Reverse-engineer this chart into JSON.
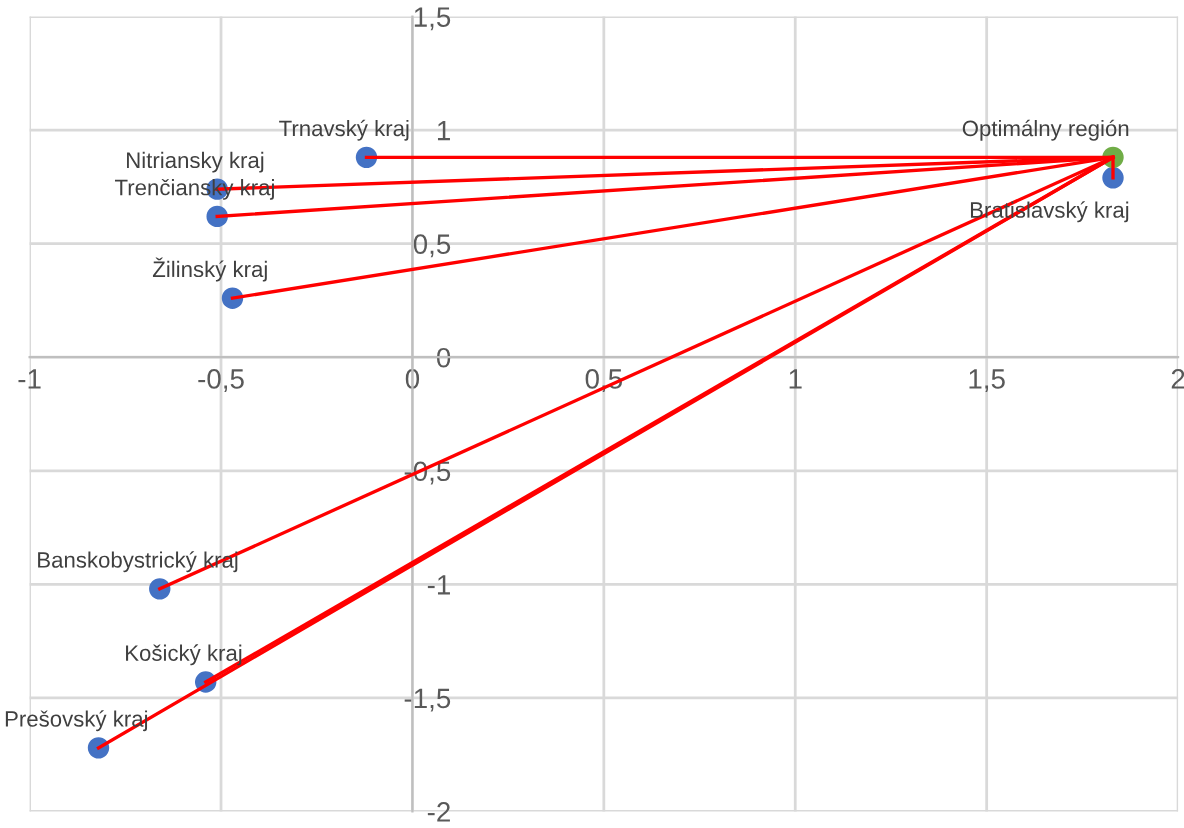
{
  "chart_data": {
    "type": "scatter",
    "grid": true,
    "marker": "circle",
    "legend": false,
    "xlim": [
      -1,
      2
    ],
    "ylim": [
      -2,
      1.5
    ],
    "xticks": [
      -1,
      {
        "value": -0.5,
        "label": "-0,5"
      },
      0,
      {
        "value": 0.5,
        "label": "0,5"
      },
      1,
      {
        "value": 1.5,
        "label": "1,5"
      },
      2
    ],
    "yticks": [
      -2,
      {
        "value": -1.5,
        "label": "-1,5"
      },
      -1,
      {
        "value": -0.5,
        "label": "-0,5"
      },
      0,
      {
        "value": 0.5,
        "label": "0,5"
      },
      1,
      {
        "value": 1.5,
        "label": "1,5"
      }
    ],
    "series": [
      {
        "type": "line",
        "marker": "none",
        "color": "#ff0000",
        "x": [
          -0.12,
          1.83
        ],
        "values": [
          0.88,
          0.88
        ]
      },
      {
        "type": "line",
        "marker": "none",
        "color": "#ff0000",
        "x": [
          -0.51,
          1.83
        ],
        "values": [
          0.74,
          0.88
        ]
      },
      {
        "type": "line",
        "marker": "none",
        "color": "#ff0000",
        "x": [
          -0.51,
          1.83
        ],
        "values": [
          0.62,
          0.88
        ]
      },
      {
        "type": "line",
        "marker": "none",
        "color": "#ff0000",
        "x": [
          -0.47,
          1.83
        ],
        "values": [
          0.26,
          0.88
        ]
      },
      {
        "type": "line",
        "marker": "none",
        "color": "#ff0000",
        "x": [
          -0.66,
          1.83
        ],
        "values": [
          -1.02,
          0.88
        ]
      },
      {
        "type": "line",
        "marker": "none",
        "color": "#ff0000",
        "x": [
          -0.54,
          1.83
        ],
        "values": [
          -1.43,
          0.88
        ]
      },
      {
        "type": "line",
        "marker": "none",
        "color": "#ff0000",
        "x": [
          -0.82,
          1.83
        ],
        "values": [
          -1.72,
          0.88
        ]
      },
      {
        "type": "line",
        "marker": "none",
        "color": "#ff0000",
        "x": [
          1.83,
          1.83
        ],
        "values": [
          0.79,
          0.88
        ]
      },
      {
        "color": "#4472c4",
        "x": [
          -0.12,
          -0.51,
          -0.51,
          -0.47,
          -0.66,
          -0.54,
          -0.82,
          1.83
        ],
        "values": [
          0.88,
          0.74,
          0.62,
          0.26,
          -1.02,
          -1.43,
          -1.72,
          0.79
        ]
      },
      {
        "color": "#70ad47",
        "x": [
          1.83
        ],
        "values": [
          0.88
        ]
      }
    ],
    "annotations": [
      {
        "text": "Trnavský kraj",
        "x": -0.12,
        "y": 0.88
      },
      {
        "text": "Nitriansky kraj",
        "x": -0.51,
        "y": 0.74
      },
      {
        "text": "Trenčiansky kraj",
        "x": -0.51,
        "y": 0.62
      },
      {
        "text": "Žilinský kraj",
        "x": -0.47,
        "y": 0.26
      },
      {
        "text": "Banskobystrický kraj",
        "x": -0.66,
        "y": -1.02
      },
      {
        "text": "Košický kraj",
        "x": -0.54,
        "y": -1.43
      },
      {
        "text": "Prešovský kraj",
        "x": -0.82,
        "y": -1.72
      },
      {
        "text": "Bratislavský kraj",
        "x": 1.83,
        "y": 0.79
      },
      {
        "text": "Optimálny región",
        "x": 1.83,
        "y": 0.88
      }
    ]
  }
}
